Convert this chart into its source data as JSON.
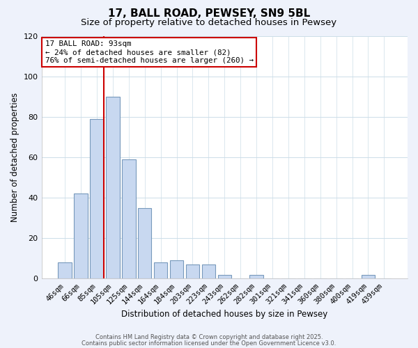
{
  "title": "17, BALL ROAD, PEWSEY, SN9 5BL",
  "subtitle": "Size of property relative to detached houses in Pewsey",
  "xlabel": "Distribution of detached houses by size in Pewsey",
  "ylabel": "Number of detached properties",
  "bar_labels": [
    "46sqm",
    "66sqm",
    "85sqm",
    "105sqm",
    "125sqm",
    "144sqm",
    "164sqm",
    "184sqm",
    "203sqm",
    "223sqm",
    "243sqm",
    "262sqm",
    "282sqm",
    "301sqm",
    "321sqm",
    "341sqm",
    "360sqm",
    "380sqm",
    "400sqm",
    "419sqm",
    "439sqm"
  ],
  "bar_values": [
    8,
    42,
    79,
    90,
    59,
    35,
    8,
    9,
    7,
    7,
    2,
    0,
    2,
    0,
    0,
    0,
    0,
    0,
    0,
    2,
    0
  ],
  "bar_color": "#c8d8f0",
  "bar_edge_color": "#7799bb",
  "vline_color": "#cc0000",
  "ylim": [
    0,
    120
  ],
  "yticks": [
    0,
    20,
    40,
    60,
    80,
    100,
    120
  ],
  "annotation_title": "17 BALL ROAD: 93sqm",
  "annotation_line1": "← 24% of detached houses are smaller (82)",
  "annotation_line2": "76% of semi-detached houses are larger (260) →",
  "bg_color": "#eef2fb",
  "plot_bg_color": "#ffffff",
  "grid_color": "#ccdde8",
  "footer1": "Contains HM Land Registry data © Crown copyright and database right 2025.",
  "footer2": "Contains public sector information licensed under the Open Government Licence v3.0.",
  "title_fontsize": 11,
  "subtitle_fontsize": 9.5
}
